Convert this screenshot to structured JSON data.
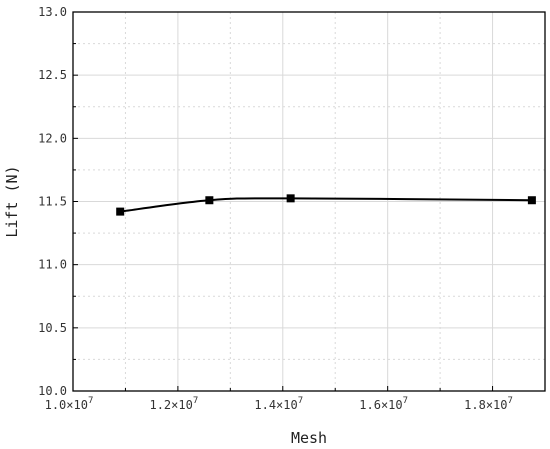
{
  "chart_data": {
    "type": "line",
    "xlabel": "Mesh",
    "ylabel": "Lift (N)",
    "xlim": [
      10000000,
      19000000
    ],
    "ylim": [
      10.0,
      13.0
    ],
    "x_ticks": [
      {
        "value": 10000000,
        "mantissa": "1.0",
        "sup": "7"
      },
      {
        "value": 12000000,
        "mantissa": "1.2",
        "sup": "7"
      },
      {
        "value": 14000000,
        "mantissa": "1.4",
        "sup": "7"
      },
      {
        "value": 16000000,
        "mantissa": "1.6",
        "sup": "7"
      },
      {
        "value": 18000000,
        "mantissa": "1.8",
        "sup": "7"
      }
    ],
    "y_ticks": [
      "10.0",
      "10.5",
      "11.0",
      "11.5",
      "12.0",
      "12.5",
      "13.0"
    ],
    "grid": true,
    "series": [
      {
        "color": "#000000",
        "marker": "square",
        "x": [
          10900000,
          12600000,
          14150000,
          18750000
        ],
        "y": [
          11.42,
          11.51,
          11.525,
          11.51
        ]
      }
    ]
  }
}
